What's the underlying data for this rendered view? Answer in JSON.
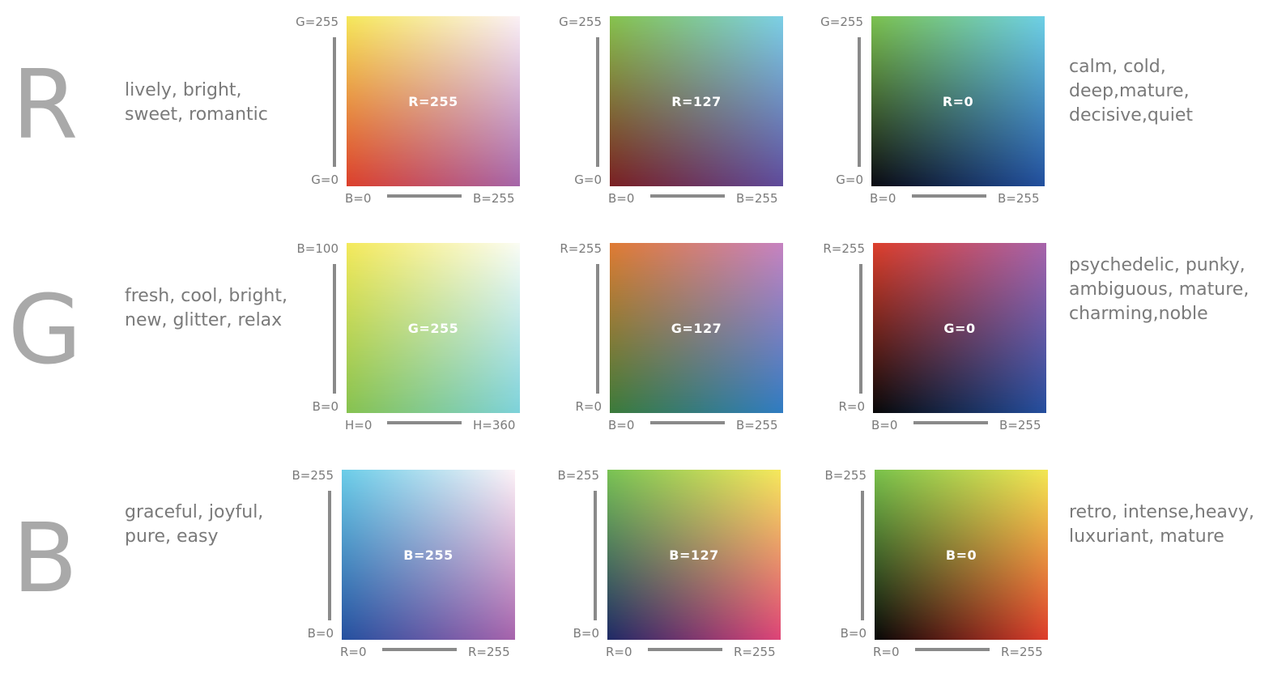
{
  "rows": [
    {
      "letter": "R",
      "left_desc": [
        "lively, bright,",
        "sweet, romantic"
      ],
      "right_desc": [
        "calm, cold,",
        "deep,mature,",
        "decisive,quiet"
      ],
      "panels": [
        {
          "center": "R=255",
          "y_top": "G=255",
          "y_bottom": "G=0",
          "x_left": "B=0",
          "x_right": "B=255",
          "colors": {
            "tl": "#f5e85a",
            "tr": "#fbf1f6",
            "bl": "#dc3f2c",
            "br": "#a565a9"
          }
        },
        {
          "center": "R=127",
          "y_top": "G=255",
          "y_bottom": "G=0",
          "x_left": "B=0",
          "x_right": "B=255",
          "colors": {
            "tl": "#86c34d",
            "tr": "#7cd0e6",
            "bl": "#7a1f22",
            "br": "#5f4b9c"
          }
        },
        {
          "center": "R=0",
          "y_top": "G=255",
          "y_bottom": "G=0",
          "x_left": "B=0",
          "x_right": "B=255",
          "colors": {
            "tl": "#7cc24f",
            "tr": "#6ed0e6",
            "bl": "#0a0a12",
            "br": "#22509f"
          }
        }
      ]
    },
    {
      "letter": "G",
      "left_desc": [
        "fresh, cool, bright,",
        "new, glitter, relax"
      ],
      "right_desc": [
        "psychedelic, punky,",
        "ambiguous, mature,",
        "charming,noble"
      ],
      "panels": [
        {
          "center": "G=255",
          "y_top": "B=100",
          "y_bottom": "B=0",
          "x_left": "H=0",
          "x_right": "H=360",
          "colors": {
            "tl": "#f4e95b",
            "tr": "#fbfcf4",
            "bl": "#86c250",
            "br": "#7dd2db"
          }
        },
        {
          "center": "G=127",
          "y_top": "R=255",
          "y_bottom": "R=0",
          "x_left": "B=0",
          "x_right": "B=255",
          "colors": {
            "tl": "#e07b33",
            "tr": "#c783c1",
            "bl": "#3b7b3a",
            "br": "#2f7cc3"
          }
        },
        {
          "center": "G=0",
          "y_top": "R=255",
          "y_bottom": "R=0",
          "x_left": "B=0",
          "x_right": "B=255",
          "colors": {
            "tl": "#dd3f2c",
            "tr": "#a864ab",
            "bl": "#080808",
            "br": "#254f9f"
          }
        }
      ]
    },
    {
      "letter": "B",
      "left_desc": [
        "graceful, joyful,",
        "pure, easy"
      ],
      "right_desc": [
        "retro, intense,heavy,",
        "luxuriant, mature"
      ],
      "panels": [
        {
          "center": "B=255",
          "y_top": "B=255",
          "y_bottom": "B=0",
          "x_left": "R=0",
          "x_right": "R=255",
          "colors": {
            "tl": "#6bcde8",
            "tr": "#fdf3f7",
            "bl": "#24509f",
            "br": "#a763ac"
          }
        },
        {
          "center": "B=127",
          "y_top": "B=255",
          "y_bottom": "B=0",
          "x_left": "R=0",
          "x_right": "R=255",
          "colors": {
            "tl": "#79c354",
            "tr": "#f6e95c",
            "bl": "#1f2a66",
            "br": "#df4478"
          }
        },
        {
          "center": "B=0",
          "y_top": "B=255",
          "y_bottom": "B=0",
          "x_left": "R=0",
          "x_right": "R=255",
          "colors": {
            "tl": "#7ac24c",
            "tr": "#f3e753",
            "bl": "#070707",
            "br": "#df3e2c"
          }
        }
      ]
    }
  ]
}
